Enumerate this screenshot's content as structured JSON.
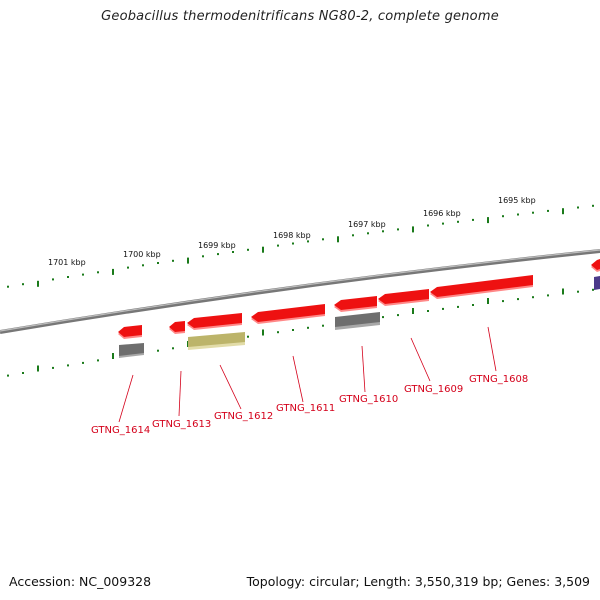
{
  "title": "Geobacillus thermodenitrificans NG80-2, complete genome",
  "footer": {
    "accession": "Accession: NC_009328",
    "summary": "Topology: circular; Length: 3,550,319 bp; Genes: 3,509"
  },
  "scale_labels": [
    "1701 kbp",
    "1700 kbp",
    "1699 kbp",
    "1698 kbp",
    "1697 kbp",
    "1696 kbp",
    "1695 kbp"
  ],
  "gene_labels": [
    "GTNG_1614",
    "GTNG_1613",
    "GTNG_1612",
    "GTNG_1611",
    "GTNG_1610",
    "GTNG_1609",
    "GTNG_1608"
  ],
  "colors": {
    "backbone": "#8a8a8a",
    "ticks": "#1a7a1a",
    "cds": "#ee1111",
    "cds_shadow": "#ff8888",
    "rna_gray": "#6e6e6e",
    "olive": "#bcb46a",
    "purple": "#4b3a8a",
    "label": "#d4001a"
  }
}
